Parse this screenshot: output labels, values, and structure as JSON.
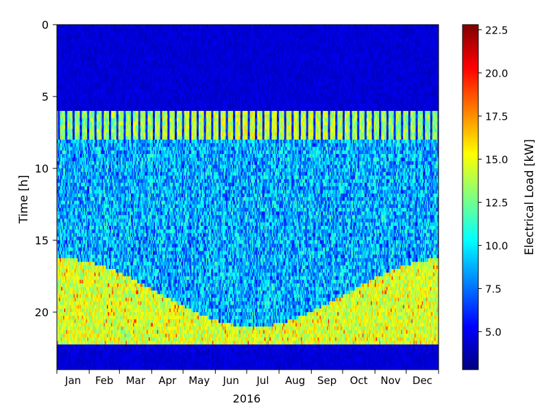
{
  "chart_data": {
    "type": "heatmap",
    "title": "",
    "xlabel": "2016",
    "ylabel": "Time [h]",
    "x_tick_labels": [
      "Jan",
      "Feb",
      "Mar",
      "Apr",
      "May",
      "Jun",
      "Jul",
      "Aug",
      "Sep",
      "Oct",
      "Nov",
      "Dec"
    ],
    "y_ticks": [
      0,
      5,
      10,
      15,
      20
    ],
    "ylim": [
      24,
      0
    ],
    "colormap": "jet",
    "colorbar": {
      "label": "Electrical Load [kW]",
      "range": [
        2.8,
        22.8
      ],
      "ticks": [
        5.0,
        7.5,
        10.0,
        12.5,
        15.0,
        17.5,
        20.0,
        22.5
      ],
      "tick_labels": [
        "5.0",
        "7.5",
        "10.0",
        "12.5",
        "15.0",
        "17.5",
        "20.0",
        "22.5"
      ]
    },
    "pattern": {
      "days": 366,
      "hours_per_day": 24,
      "night_hours": [
        0,
        6
      ],
      "night_load_kw": 4.5,
      "morning_ramp_hours": [
        6,
        8
      ],
      "morning_load_kw": 13.0,
      "evening_end_hour": 22.3,
      "daytime_load_kw": 9.0,
      "evening_load_kw": 14.5,
      "evening_start_winter_hour": 16.3,
      "evening_start_summer_hour": 21.0,
      "weekend_load_kw": 6.0
    }
  }
}
